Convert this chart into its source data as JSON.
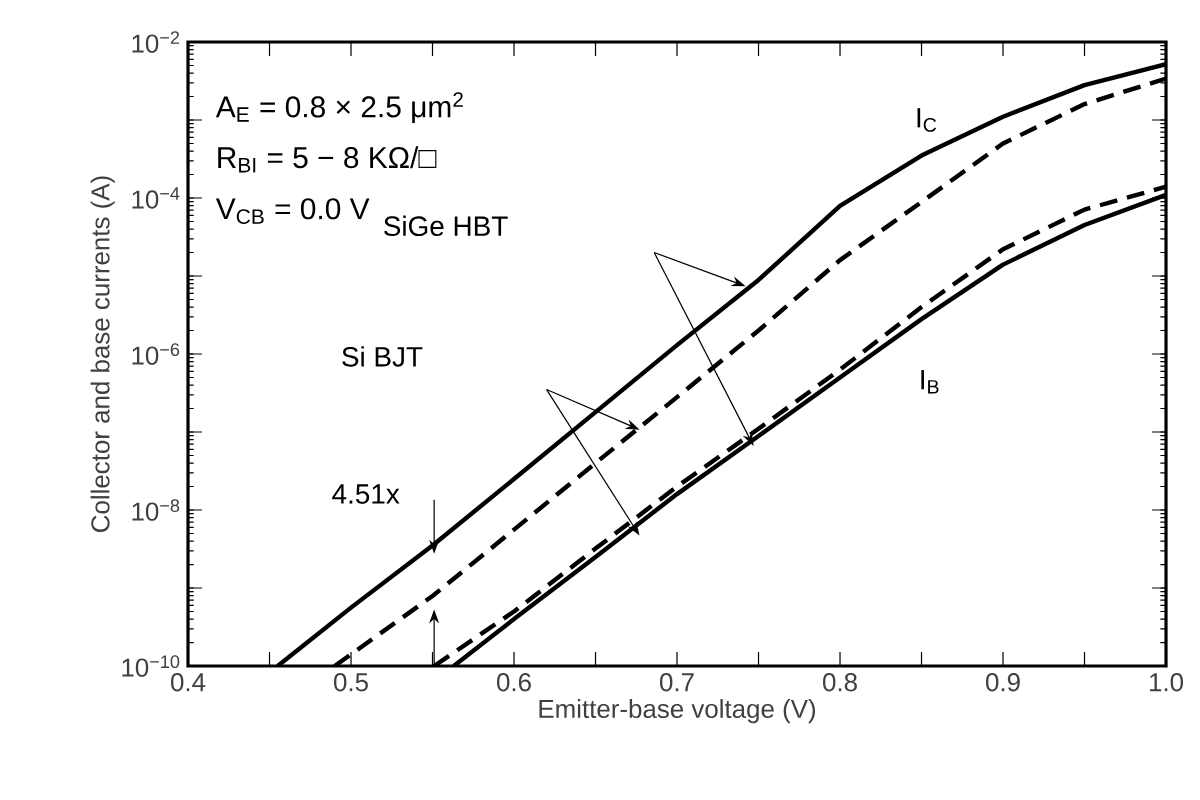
{
  "chart_data": {
    "type": "line",
    "xlabel": "Emitter-base voltage (V)",
    "ylabel": "Collector and base currents (A)",
    "log": "y",
    "xlim": [
      0.4,
      1.0
    ],
    "xticks": [
      0.4,
      {
        "value": 0.45,
        "label": null
      },
      0.5,
      {
        "value": 0.55,
        "label": null
      },
      0.6,
      {
        "value": 0.65,
        "label": null
      },
      0.7,
      {
        "value": 0.75,
        "label": null
      },
      0.8,
      {
        "value": 0.85,
        "label": null
      },
      0.9,
      {
        "value": 0.95,
        "label": null
      },
      {
        "value": 1.0,
        "label": "1.0"
      }
    ],
    "ylim": [
      1e-10,
      0.01
    ],
    "yticks": [
      {
        "value": 1e-10,
        "label": "10$^{−10}$"
      },
      {
        "value": 1e-09,
        "label": null
      },
      {
        "value": 1e-08,
        "label": "10$^{−8}$"
      },
      {
        "value": 1e-07,
        "label": null
      },
      {
        "value": 1e-06,
        "label": "10$^{−6}$"
      },
      {
        "value": 1e-05,
        "label": null
      },
      {
        "value": 0.0001,
        "label": "10$^{−4}$"
      },
      {
        "value": 0.001,
        "label": null
      },
      {
        "value": 0.01,
        "label": "10$^{−2}$"
      }
    ],
    "grid": false,
    "marker": "none",
    "series": [
      {
        "color": "#000000",
        "line_style": "solid",
        "x": [
          0.455,
          0.5,
          0.55,
          0.6,
          0.65,
          0.7,
          0.75,
          0.8,
          0.85,
          0.9,
          0.95,
          1.0
        ],
        "values": [
          1e-10,
          5.6e-10,
          3.5e-09,
          2.5e-08,
          1.8e-07,
          1.3e-06,
          8.9e-06,
          7.9e-05,
          0.00035,
          0.0011,
          0.0028,
          0.0052
        ]
      },
      {
        "color": "#000000",
        "line_style": "dashed",
        "x": [
          0.49,
          0.55,
          0.6,
          0.65,
          0.7,
          0.75,
          0.8,
          0.85,
          0.9,
          0.95,
          1.0
        ],
        "values": [
          1e-10,
          7.9e-10,
          5.6e-09,
          4e-08,
          2.8e-07,
          2e-06,
          1.6e-05,
          8.9e-05,
          0.0005,
          0.0016,
          0.0034
        ]
      },
      {
        "color": "#000000",
        "line_style": "solid",
        "x": [
          0.563,
          0.6,
          0.65,
          0.7,
          0.75,
          0.8,
          0.85,
          0.9,
          0.95,
          1.0
        ],
        "values": [
          1e-10,
          4e-10,
          2.5e-09,
          1.6e-08,
          8.9e-08,
          5e-07,
          2.8e-06,
          1.4e-05,
          4.5e-05,
          0.00011
        ]
      },
      {
        "color": "#000000",
        "line_style": "dashed",
        "x": [
          0.551,
          0.6,
          0.65,
          0.7,
          0.75,
          0.8,
          0.85,
          0.9,
          0.95,
          1.0
        ],
        "values": [
          1e-10,
          5e-10,
          3.2e-09,
          2e-08,
          1.1e-07,
          6.3e-07,
          4e-06,
          2.2e-05,
          7.1e-05,
          0.00014
        ]
      }
    ],
    "annotations": [
      "A$_{E}$  = 0.8 × 2.5 μm$^{2}$",
      "R$_{BI}$ = 5 − 8 KΩ/□",
      "V$_{CB}$ = 0.0 V",
      "SiGe HBT",
      "Si BJT",
      {
        "text": "4.51x",
        "x": 0.551,
        "y": 2.75e-09
      },
      "I$_{C}$",
      "I$_{B}$"
    ]
  }
}
